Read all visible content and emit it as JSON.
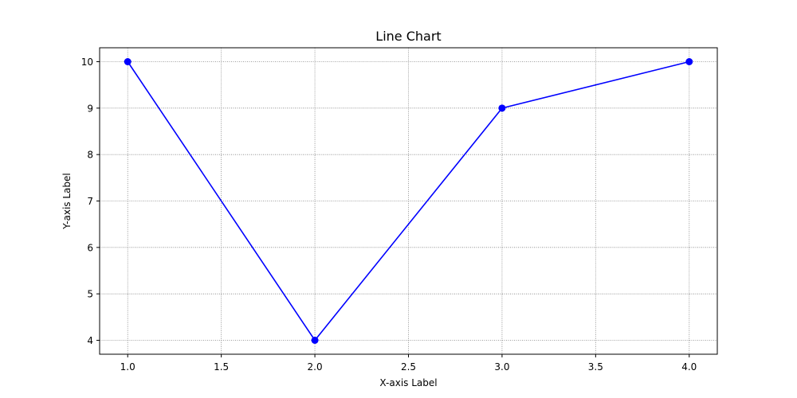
{
  "chart_data": {
    "type": "line",
    "title": "Line Chart",
    "xlabel": "X-axis Label",
    "ylabel": "Y-axis Label",
    "x": [
      1,
      2,
      3,
      4
    ],
    "series": [
      {
        "values": [
          10,
          4,
          9,
          10
        ],
        "color": "#0000ff",
        "marker": "circle"
      }
    ],
    "xlim": [
      0.85,
      4.15
    ],
    "ylim": [
      3.7,
      10.3
    ],
    "xticks": [
      1.0,
      1.5,
      2.0,
      2.5,
      3.0,
      3.5,
      4.0
    ],
    "xtick_labels": [
      "1.0",
      "1.5",
      "2.0",
      "2.5",
      "3.0",
      "3.5",
      "4.0"
    ],
    "yticks": [
      4,
      5,
      6,
      7,
      8,
      9,
      10
    ],
    "ytick_labels": [
      "4",
      "5",
      "6",
      "7",
      "8",
      "9",
      "10"
    ],
    "grid": true,
    "grid_style": "dotted",
    "grid_color": "#808080",
    "legend": false
  }
}
